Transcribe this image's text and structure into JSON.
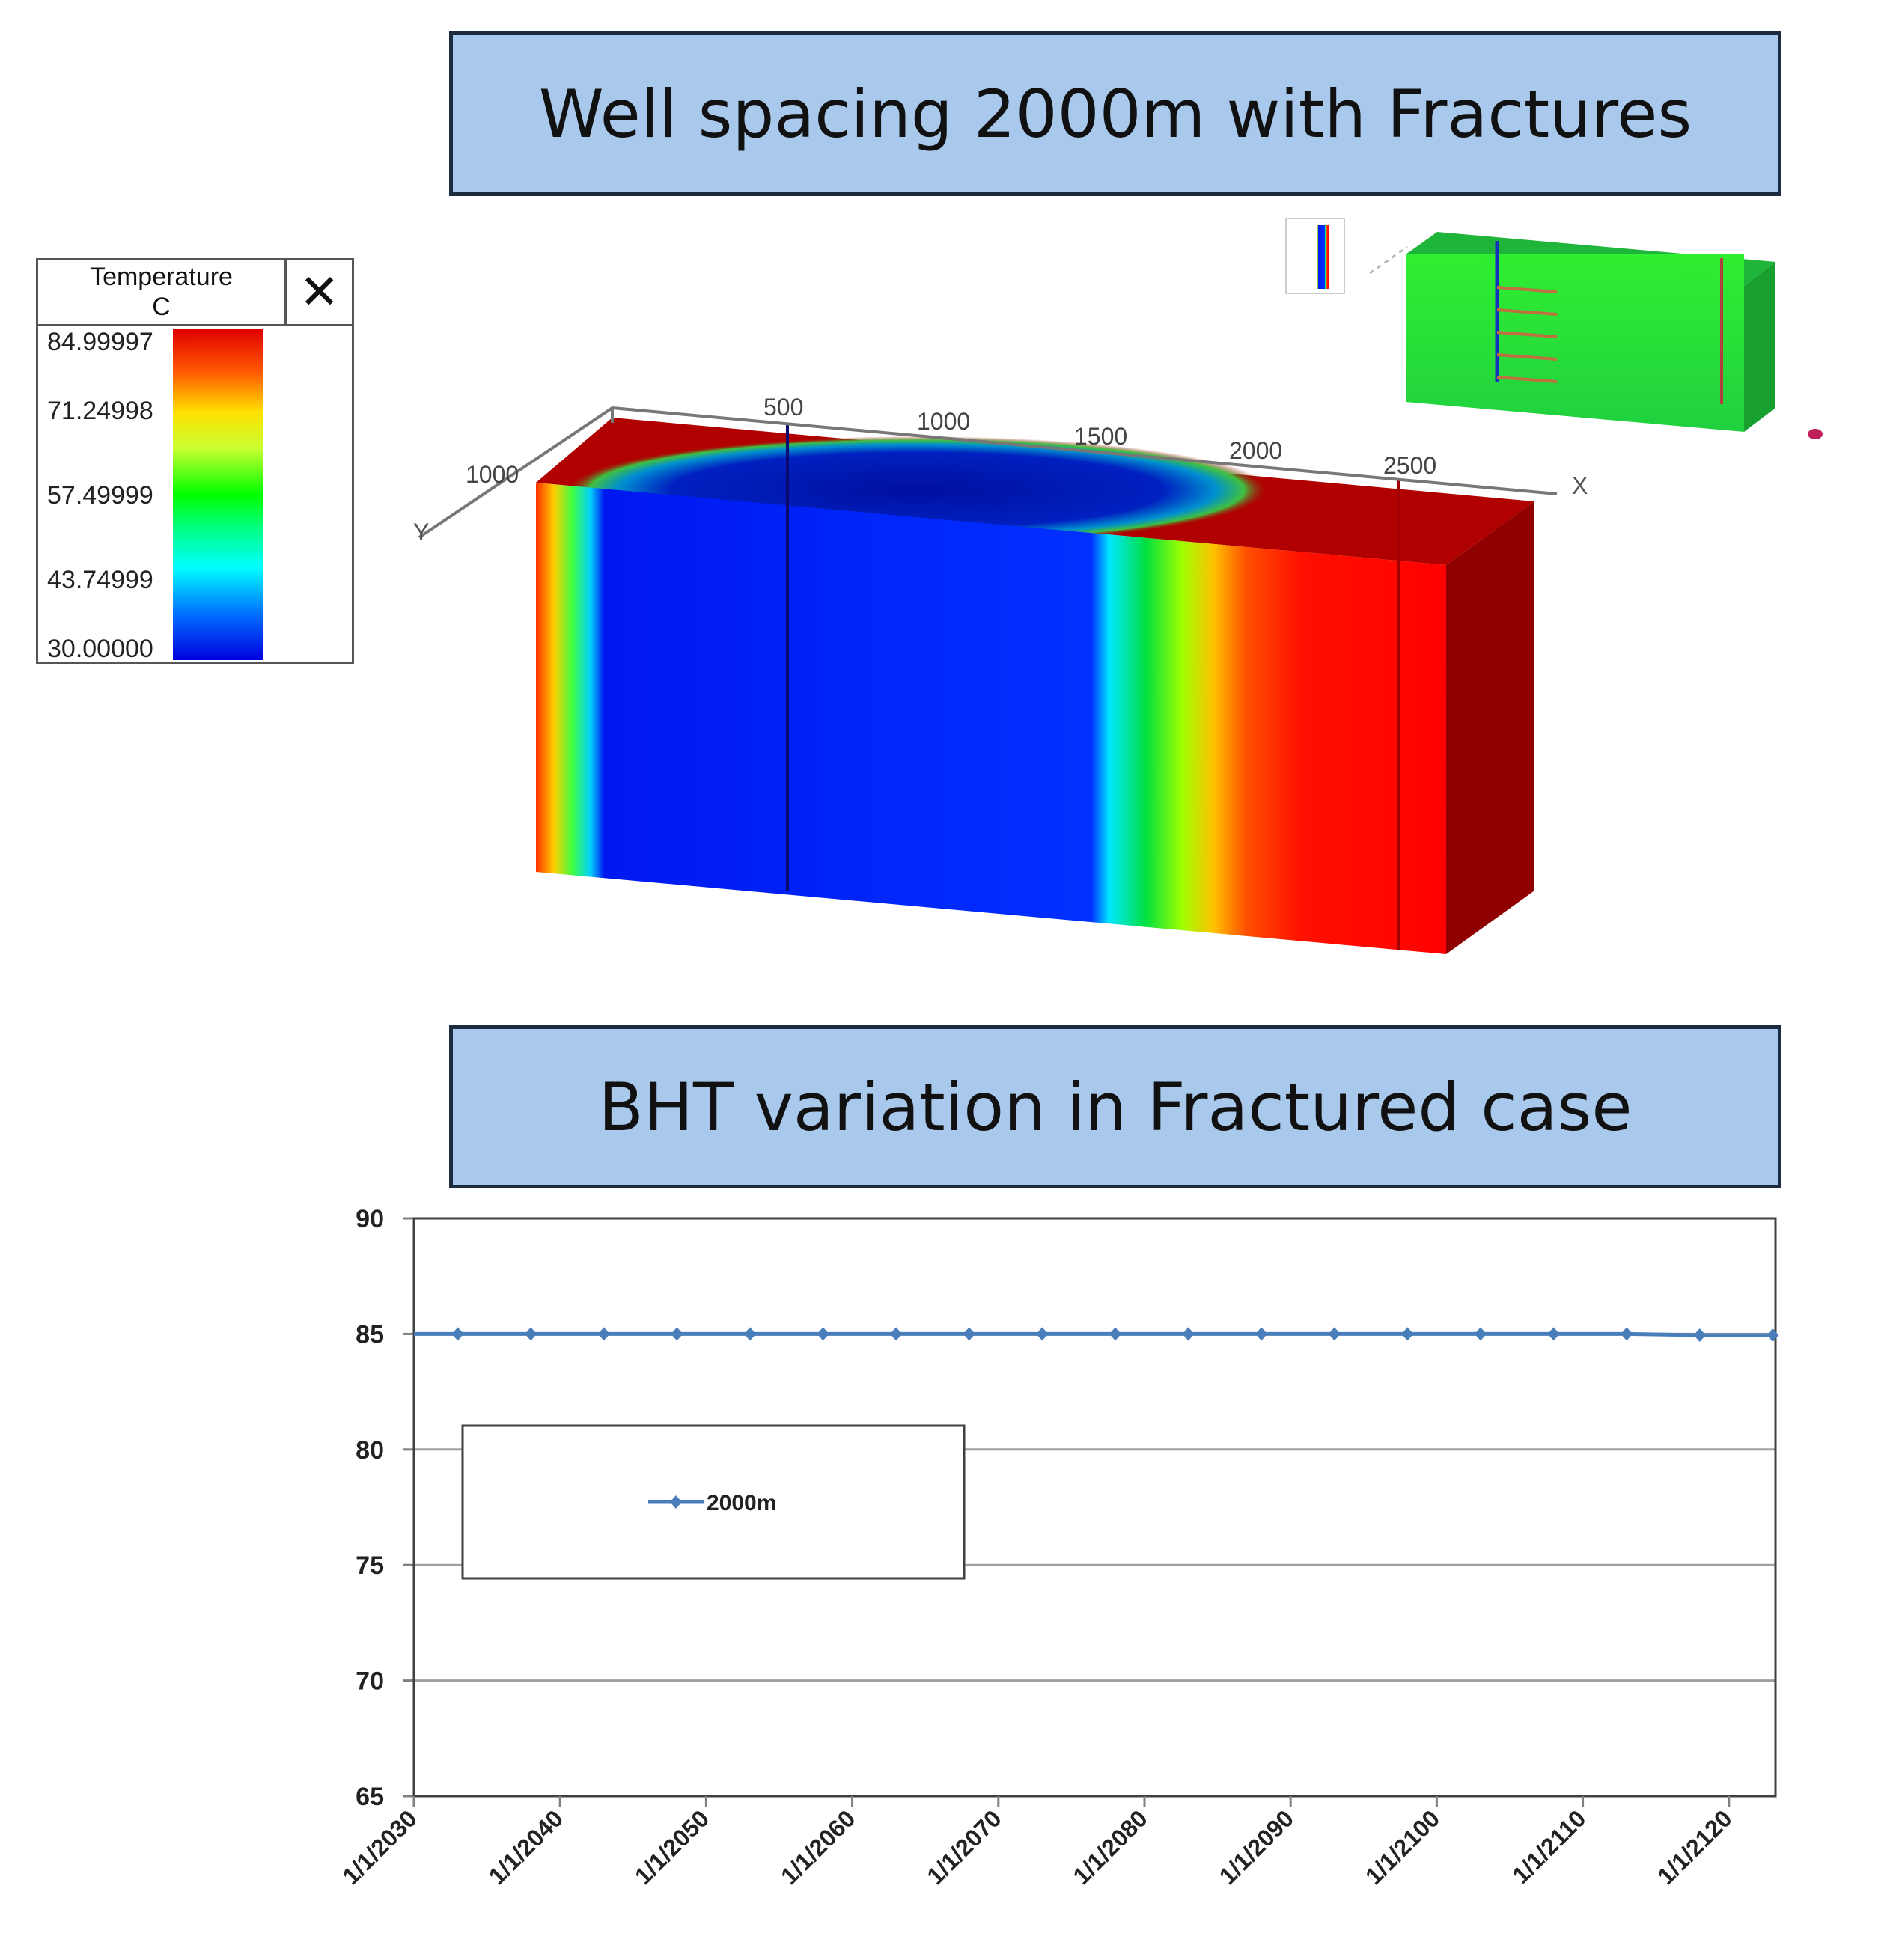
{
  "banners": {
    "top": "Well spacing 2000m with Fractures",
    "bottom": "BHT variation in Fractured case"
  },
  "color_scale": {
    "title": "Temperature",
    "unit": "C",
    "ticks": [
      "84.99997",
      "71.24998",
      "57.49999",
      "43.74999",
      "30.00000"
    ],
    "close_icon": "close-icon"
  },
  "model_3d": {
    "x_axis_label": "X",
    "y_axis_label": "Y",
    "x_ticks": [
      "500",
      "1000",
      "1500",
      "2000",
      "2500"
    ],
    "y_ticks": [
      "1000"
    ]
  },
  "chart_data": {
    "type": "line",
    "xlabel": "",
    "ylabel": "",
    "ylim": [
      65,
      90
    ],
    "yticks": [
      "65",
      "70",
      "75",
      "80",
      "85",
      "90"
    ],
    "xticks": [
      "1/1/2030",
      "1/1/2040",
      "1/1/2050",
      "1/1/2060",
      "1/1/2070",
      "1/1/2080",
      "1/1/2090",
      "1/1/2100",
      "1/1/2110",
      "1/1/2120"
    ],
    "grid": "horizontal",
    "legend": "left",
    "series": [
      {
        "name": "2000m",
        "color": "#4a7ebb",
        "x": [
          "1/1/2033",
          "1/1/2038",
          "1/1/2043",
          "1/1/2048",
          "1/1/2053",
          "1/1/2058",
          "1/1/2063",
          "1/1/2068",
          "1/1/2073",
          "1/1/2078",
          "1/1/2083",
          "1/1/2088",
          "1/1/2093",
          "1/1/2098",
          "1/1/2103",
          "1/1/2108",
          "1/1/2113",
          "1/1/2118",
          "1/1/2123"
        ],
        "values": [
          85.0,
          85.0,
          85.0,
          85.0,
          85.0,
          85.0,
          85.0,
          85.0,
          85.0,
          85.0,
          85.0,
          85.0,
          85.0,
          85.0,
          85.0,
          85.0,
          85.0,
          84.95,
          84.95
        ]
      }
    ]
  }
}
